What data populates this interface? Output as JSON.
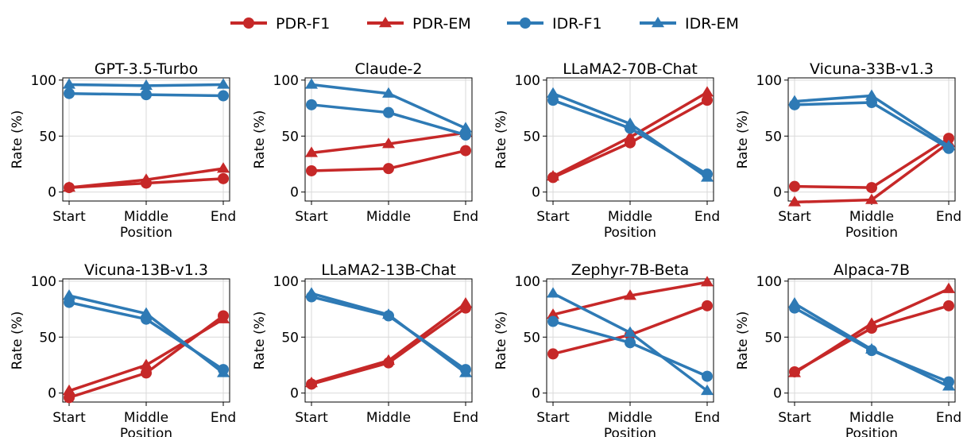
{
  "legend": [
    {
      "name": "PDR-F1",
      "color": "#c62828",
      "marker": "circle"
    },
    {
      "name": "PDR-EM",
      "color": "#c62828",
      "marker": "triangle"
    },
    {
      "name": "IDR-F1",
      "color": "#2e7ab5",
      "marker": "circle"
    },
    {
      "name": "IDR-EM",
      "color": "#2e7ab5",
      "marker": "triangle"
    }
  ],
  "chart_data": [
    {
      "type": "line",
      "title": "GPT-3.5-Turbo",
      "xlabel": "Position",
      "ylabel": "Rate (%)",
      "categories": [
        "Start",
        "Middle",
        "End"
      ],
      "ylim": [
        -8,
        102
      ],
      "yticks": [
        0,
        50,
        100
      ],
      "grid": true,
      "series": [
        {
          "name": "PDR-F1",
          "values": [
            4,
            8,
            12
          ]
        },
        {
          "name": "PDR-EM",
          "values": [
            4,
            11,
            21
          ]
        },
        {
          "name": "IDR-F1",
          "values": [
            88,
            87,
            86
          ]
        },
        {
          "name": "IDR-EM",
          "values": [
            96,
            95,
            96
          ]
        }
      ]
    },
    {
      "type": "line",
      "title": "Claude-2",
      "xlabel": "",
      "ylabel": "Rate (%)",
      "categories": [
        "Start",
        "Middle",
        "End"
      ],
      "ylim": [
        -8,
        102
      ],
      "yticks": [
        0,
        50,
        100
      ],
      "grid": true,
      "series": [
        {
          "name": "PDR-F1",
          "values": [
            19,
            21,
            37
          ]
        },
        {
          "name": "PDR-EM",
          "values": [
            35,
            43,
            53
          ]
        },
        {
          "name": "IDR-F1",
          "values": [
            78,
            71,
            51
          ]
        },
        {
          "name": "IDR-EM",
          "values": [
            96,
            88,
            57
          ]
        }
      ]
    },
    {
      "type": "line",
      "title": "LLaMA2-70B-Chat",
      "xlabel": "Position",
      "ylabel": "Rate (%)",
      "categories": [
        "Start",
        "Middle",
        "End"
      ],
      "ylim": [
        -8,
        102
      ],
      "yticks": [
        0,
        50,
        100
      ],
      "grid": true,
      "series": [
        {
          "name": "PDR-F1",
          "values": [
            13,
            44,
            82
          ]
        },
        {
          "name": "PDR-EM",
          "values": [
            14,
            49,
            89
          ]
        },
        {
          "name": "IDR-F1",
          "values": [
            82,
            57,
            16
          ]
        },
        {
          "name": "IDR-EM",
          "values": [
            88,
            61,
            13
          ]
        }
      ]
    },
    {
      "type": "line",
      "title": "Vicuna-33B-v1.3",
      "xlabel": "Position",
      "ylabel": "Rate (%)",
      "categories": [
        "Start",
        "Middle",
        "End"
      ],
      "ylim": [
        -8,
        102
      ],
      "yticks": [
        0,
        50,
        100
      ],
      "grid": true,
      "series": [
        {
          "name": "PDR-F1",
          "values": [
            5,
            4,
            48
          ]
        },
        {
          "name": "PDR-EM",
          "values": [
            -9,
            -7,
            44
          ]
        },
        {
          "name": "IDR-F1",
          "values": [
            78,
            80,
            39
          ]
        },
        {
          "name": "IDR-EM",
          "values": [
            81,
            86,
            41
          ]
        }
      ]
    },
    {
      "type": "line",
      "title": "Vicuna-13B-v1.3",
      "xlabel": "Position",
      "ylabel": "Rate (%)",
      "categories": [
        "Start",
        "Middle",
        "End"
      ],
      "ylim": [
        -8,
        102
      ],
      "yticks": [
        0,
        50,
        100
      ],
      "grid": true,
      "series": [
        {
          "name": "PDR-F1",
          "values": [
            -4,
            18,
            69
          ]
        },
        {
          "name": "PDR-EM",
          "values": [
            2,
            25,
            66
          ]
        },
        {
          "name": "IDR-F1",
          "values": [
            81,
            66,
            21
          ]
        },
        {
          "name": "IDR-EM",
          "values": [
            87,
            71,
            18
          ]
        }
      ]
    },
    {
      "type": "line",
      "title": "LLaMA2-13B-Chat",
      "xlabel": "",
      "ylabel": "Rate (%)",
      "categories": [
        "Start",
        "Middle",
        "End"
      ],
      "ylim": [
        -8,
        102
      ],
      "yticks": [
        0,
        50,
        100
      ],
      "grid": true,
      "series": [
        {
          "name": "PDR-F1",
          "values": [
            8,
            27,
            76
          ]
        },
        {
          "name": "PDR-EM",
          "values": [
            9,
            29,
            80
          ]
        },
        {
          "name": "IDR-F1",
          "values": [
            86,
            69,
            21
          ]
        },
        {
          "name": "IDR-EM",
          "values": [
            89,
            70,
            18
          ]
        }
      ]
    },
    {
      "type": "line",
      "title": "Zephyr-7B-Beta",
      "xlabel": "Position",
      "ylabel": "Rate (%)",
      "categories": [
        "Start",
        "Middle",
        "End"
      ],
      "ylim": [
        -8,
        102
      ],
      "yticks": [
        0,
        50,
        100
      ],
      "grid": true,
      "series": [
        {
          "name": "PDR-F1",
          "values": [
            35,
            52,
            78
          ]
        },
        {
          "name": "PDR-EM",
          "values": [
            70,
            87,
            99
          ]
        },
        {
          "name": "IDR-F1",
          "values": [
            64,
            45,
            15
          ]
        },
        {
          "name": "IDR-EM",
          "values": [
            89,
            54,
            2
          ]
        }
      ]
    },
    {
      "type": "line",
      "title": "Alpaca-7B",
      "xlabel": "Position",
      "ylabel": "Rate (%)",
      "categories": [
        "Start",
        "Middle",
        "End"
      ],
      "ylim": [
        -8,
        102
      ],
      "yticks": [
        0,
        50,
        100
      ],
      "grid": true,
      "series": [
        {
          "name": "PDR-F1",
          "values": [
            19,
            58,
            78
          ]
        },
        {
          "name": "PDR-EM",
          "values": [
            18,
            62,
            93
          ]
        },
        {
          "name": "IDR-F1",
          "values": [
            76,
            38,
            10
          ]
        },
        {
          "name": "IDR-EM",
          "values": [
            80,
            39,
            6
          ]
        }
      ]
    }
  ]
}
